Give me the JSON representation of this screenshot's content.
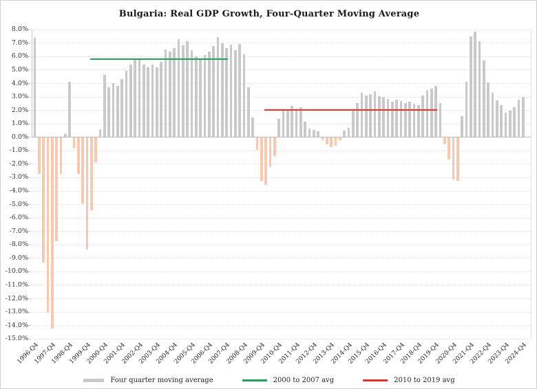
{
  "chart_data": {
    "type": "bar",
    "title": "Bulgaria: Real GDP Growth, Four-Quarter Moving Average",
    "start_quarter": "1996-Q4",
    "end_quarter": "2024-Q4",
    "values": [
      7.4,
      -2.7,
      -9.3,
      -13.0,
      -14.2,
      -7.7,
      -2.7,
      0.2,
      4.1,
      -0.8,
      -2.7,
      -4.9,
      -8.3,
      -5.4,
      -1.8,
      0.6,
      4.6,
      3.7,
      4.0,
      3.8,
      4.3,
      4.9,
      5.4,
      5.75,
      5.75,
      5.4,
      5.2,
      5.4,
      5.2,
      5.6,
      6.5,
      6.35,
      6.6,
      7.25,
      6.8,
      7.1,
      6.45,
      6.0,
      5.75,
      6.1,
      6.35,
      6.75,
      7.45,
      6.95,
      6.6,
      6.85,
      6.45,
      6.9,
      6.15,
      3.7,
      1.45,
      -0.9,
      -3.2,
      -3.5,
      -2.2,
      -1.35,
      1.35,
      2.0,
      1.95,
      2.3,
      2.1,
      2.2,
      1.15,
      0.65,
      0.55,
      0.4,
      -0.2,
      -0.5,
      -0.7,
      -0.6,
      -0.2,
      0.45,
      0.7,
      1.95,
      2.5,
      3.3,
      3.1,
      3.2,
      3.4,
      3.05,
      3.0,
      2.85,
      2.6,
      2.8,
      2.65,
      2.5,
      2.6,
      2.45,
      2.35,
      3.1,
      3.5,
      3.6,
      3.8,
      2.5,
      -0.5,
      -1.6,
      -3.1,
      -3.2,
      1.55,
      4.1,
      7.5,
      7.85,
      7.1,
      5.7,
      4.05,
      3.3,
      2.7,
      2.35,
      1.8,
      1.95,
      2.2,
      2.75,
      3.0
    ],
    "x_tick_labels": [
      "1996-Q4",
      "1997-Q4",
      "1998-Q4",
      "1999-Q4",
      "2000-Q4",
      "2001-Q4",
      "2002-Q4",
      "2003-Q4",
      "2004-Q4",
      "2005-Q4",
      "2006-Q4",
      "2007-Q4",
      "2008-Q4",
      "2009-Q4",
      "2010-Q4",
      "2011-Q4",
      "2012-Q4",
      "2013-Q4",
      "2014-Q4",
      "2015-Q4",
      "2016-Q4",
      "2017-Q4",
      "2018-Q4",
      "2019-Q4",
      "2020-Q4",
      "2021-Q4",
      "2022-Q4",
      "2023-Q4",
      "2024-Q4"
    ],
    "y_tick_labels": [
      "8.0%",
      "7.0%",
      "6.0%",
      "5.0%",
      "4.0%",
      "3.0%",
      "2.0%",
      "1.0%",
      "0.0%",
      "-1.0%",
      "-2.0%",
      "-3.0%",
      "-4.0%",
      "-5.0%",
      "-6.0%",
      "-7.0%",
      "-8.0%",
      "-9.0%",
      "-10.0%",
      "-11.0%",
      "-12.0%",
      "-13.0%",
      "-14.0%",
      "-15.0%"
    ],
    "ylim": [
      -15,
      8
    ],
    "y_step": 1,
    "grid": "dotted horizontal lines",
    "legend_position": "bottom",
    "reference_lines": [
      {
        "label": "2000 to 2007 avg",
        "value": 5.8,
        "color": "#1ea45a",
        "from_index": 13,
        "to_index": 44
      },
      {
        "label": "2010 to 2019 avg",
        "value": 2.0,
        "color": "#e8312a",
        "from_index": 53,
        "to_index": 92
      }
    ],
    "colors": {
      "bar_positive": "#c9c9c9",
      "bar_negative": "#f9c8ad"
    }
  },
  "legend": {
    "items": [
      {
        "label": "Four quarter moving average",
        "swatch": "bar",
        "color": "#c9c9c9"
      },
      {
        "label": "2000 to 2007 avg",
        "swatch": "line",
        "color": "#1ea45a"
      },
      {
        "label": "2010 to 2019 avg",
        "swatch": "line",
        "color": "#e8312a"
      }
    ]
  }
}
